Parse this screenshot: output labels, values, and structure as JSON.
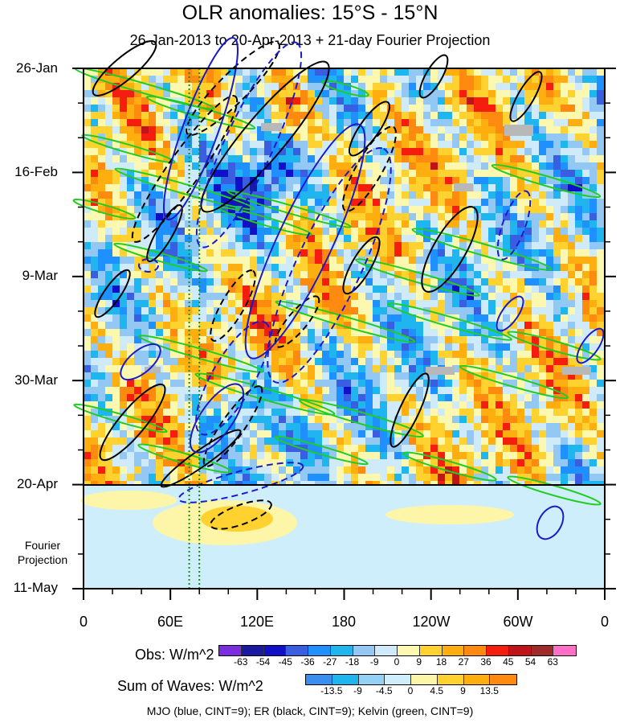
{
  "title": "OLR anomalies: 15°S - 15°N",
  "subtitle": "26-Jan-2013 to 20-Apr-2013 + 21-day Fourier Projection",
  "y_tick_labels": [
    "26-Jan",
    "16-Feb",
    "9-Mar",
    "30-Mar",
    "20-Apr",
    "11-May"
  ],
  "x_tick_labels": [
    "0",
    "60E",
    "120E",
    "180",
    "120W",
    "60W",
    "0"
  ],
  "fourier_label_1": "Fourier",
  "fourier_label_2": "Projection",
  "obs_label": "Obs: W/m^2",
  "obs_ticks": [
    "-63",
    "-54",
    "-45",
    "-36",
    "-27",
    "-18",
    "-9",
    "0",
    "9",
    "18",
    "27",
    "36",
    "45",
    "54",
    "63"
  ],
  "obs_colors": [
    "#7a2ee0",
    "#1a1aa0",
    "#1010c8",
    "#3a5ee0",
    "#1e90ff",
    "#1fb6f0",
    "#93c8f5",
    "#cfeaf8",
    "#fdf8b0",
    "#ffd230",
    "#ffae10",
    "#ff8a10",
    "#f51d0e",
    "#c0131a",
    "#a02a2a",
    "#ff6fc5"
  ],
  "sow_label": "Sum of Waves: W/m^2",
  "sow_ticks": [
    "-13.5",
    "-9",
    "-4.5",
    "0",
    "4.5",
    "9",
    "13.5"
  ],
  "sow_colors": [
    "#3a8ef0",
    "#1fb6f0",
    "#93d2f5",
    "#cfeefb",
    "#fdf6a8",
    "#ffd230",
    "#ffae10",
    "#ff8a10"
  ],
  "legend_note": "MJO (blue, CINT=9); ER (black, CINT=9); Kelvin (green, CINT=9)",
  "chart_data": {
    "type": "heatmap",
    "title": "OLR anomalies: 15°S - 15°N",
    "subtitle": "26-Jan-2013 to 20-Apr-2013 + 21-day Fourier Projection",
    "x_axis": {
      "ticks": [
        "0",
        "60E",
        "120E",
        "180",
        "120W",
        "60W",
        "0"
      ],
      "range_deg_east": [
        0,
        360
      ]
    },
    "y_axis": {
      "ticks": [
        "26-Jan",
        "16-Feb",
        "9-Mar",
        "30-Mar",
        "20-Apr",
        "11-May"
      ],
      "range": [
        "2013-01-26",
        "2013-05-11"
      ],
      "direction": "time increases downward"
    },
    "observed_end": "2013-04-20",
    "projection_note": "21-day Fourier Projection",
    "color_scales": {
      "obs_levels": [
        -63,
        -54,
        -45,
        -36,
        -27,
        -18,
        -9,
        0,
        9,
        18,
        27,
        36,
        45,
        54,
        63
      ],
      "sum_of_waves_levels": [
        -13.5,
        -9,
        -4.5,
        0,
        4.5,
        9,
        13.5
      ]
    },
    "contours": [
      {
        "name": "MJO",
        "color": "blue",
        "cint": 9
      },
      {
        "name": "ER",
        "color": "black",
        "cint": 9
      },
      {
        "name": "Kelvin",
        "color": "green",
        "cint": 9
      }
    ],
    "reference_lines_lon_deg_east": [
      73,
      80
    ]
  }
}
